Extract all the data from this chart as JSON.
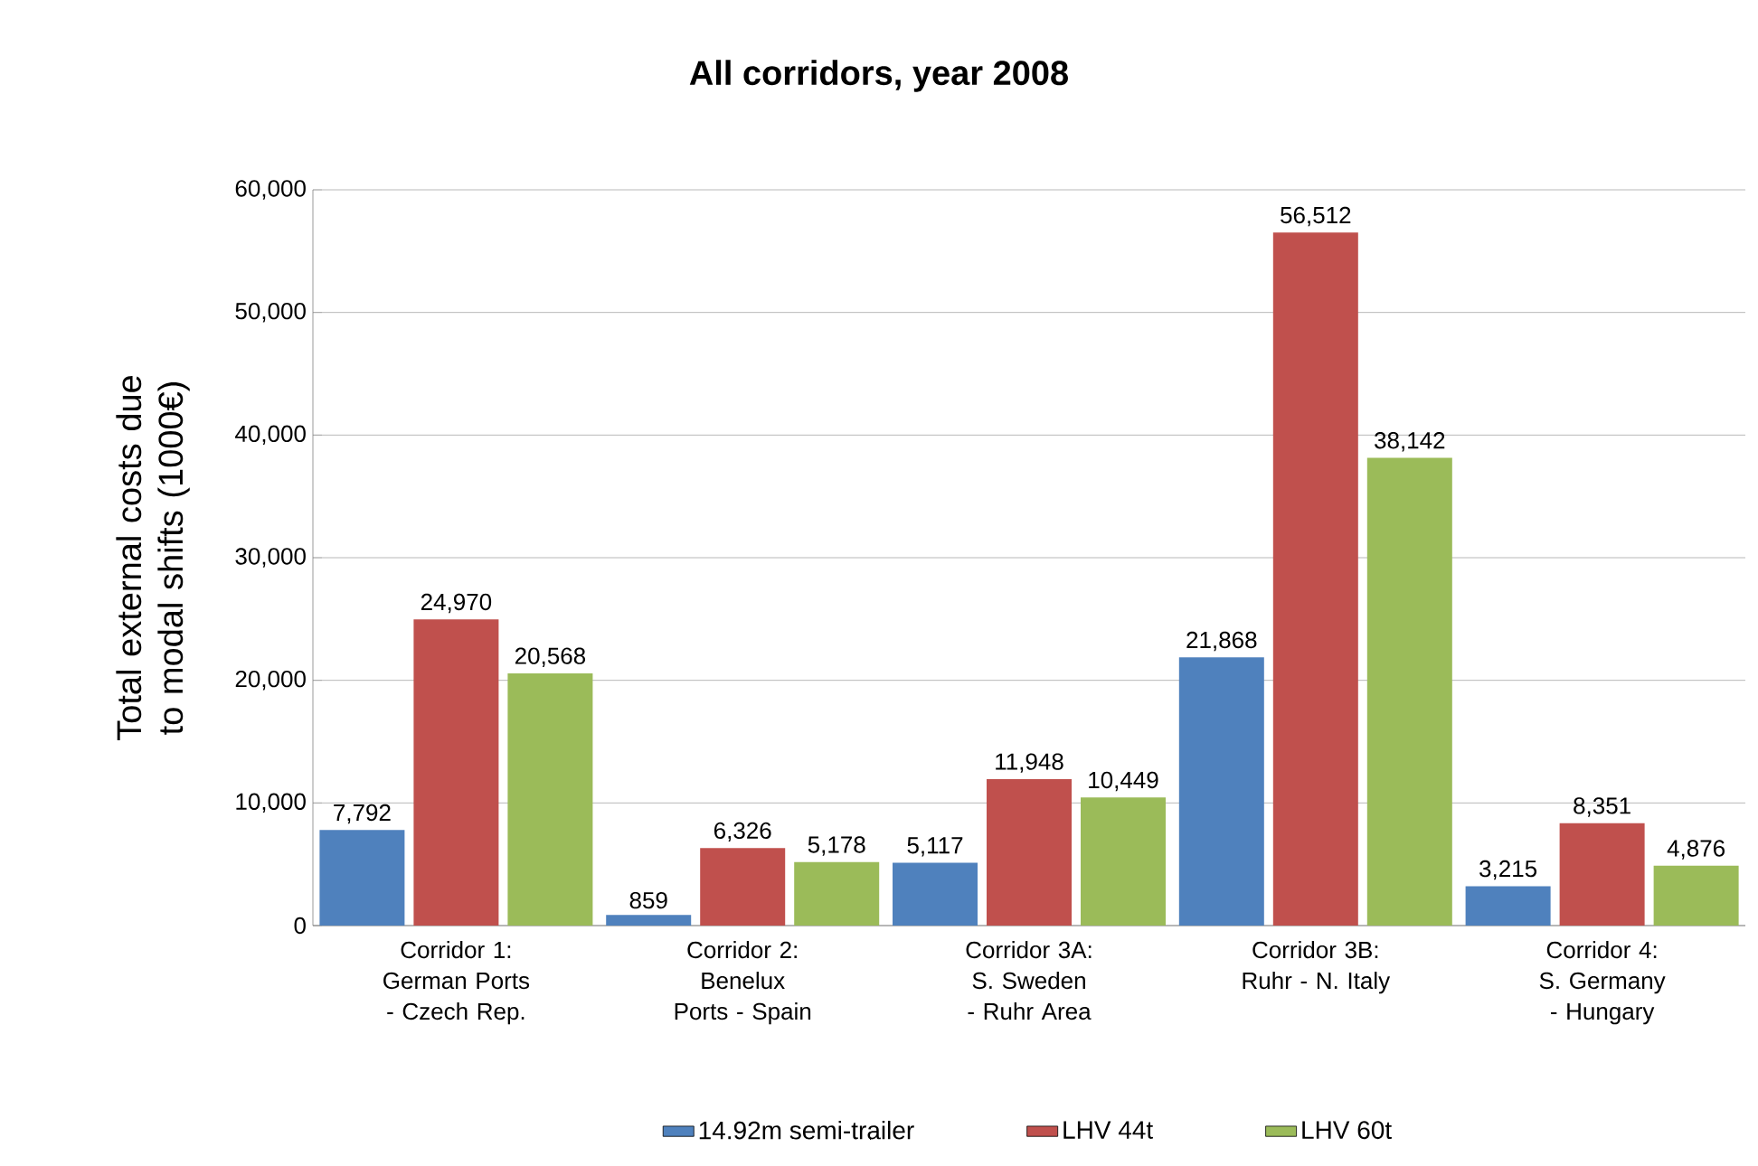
{
  "chart_data": {
    "type": "bar",
    "title": "All corridors, year 2008",
    "ylabel": "Total external costs due to modal shifts (1000€)",
    "categories": [
      "Corridor 1: German Ports - Czech Rep.",
      "Corridor 2: Benelux Ports - Spain",
      "Corridor 3A: S. Sweden - Ruhr Area",
      "Corridor 3B: Ruhr - N. Italy",
      "Corridor 4: S. Germany - Hungary"
    ],
    "series": [
      {
        "name": "14.92m semi-trailer",
        "color": "#4f81bd",
        "values": [
          7792,
          859,
          5117,
          21868,
          3215
        ],
        "value_labels": [
          "7,792",
          "859",
          "5,117",
          "21,868",
          "3,215"
        ]
      },
      {
        "name": "LHV 44t",
        "color": "#c0504d",
        "values": [
          24970,
          6326,
          11948,
          56512,
          8351
        ],
        "value_labels": [
          "24,970",
          "6,326",
          "11,948",
          "56,512",
          "8,351"
        ]
      },
      {
        "name": "LHV 60t",
        "color": "#9bbb59",
        "values": [
          20568,
          5178,
          10449,
          38142,
          4876
        ],
        "value_labels": [
          "20,568",
          "5,178",
          "10,449",
          "38,142",
          "4,876"
        ]
      }
    ],
    "ylim": [
      0,
      60000
    ],
    "yticks": [
      0,
      {
        "value": 10000,
        "label": "10,000"
      },
      {
        "value": 20000,
        "label": "20,000"
      },
      {
        "value": 30000,
        "label": "30,000"
      },
      {
        "value": 40000,
        "label": "40,000"
      },
      {
        "value": 50000,
        "label": "50,000"
      },
      {
        "value": 60000,
        "label": "60,000"
      }
    ],
    "grid": "y",
    "legend": "bottom"
  }
}
